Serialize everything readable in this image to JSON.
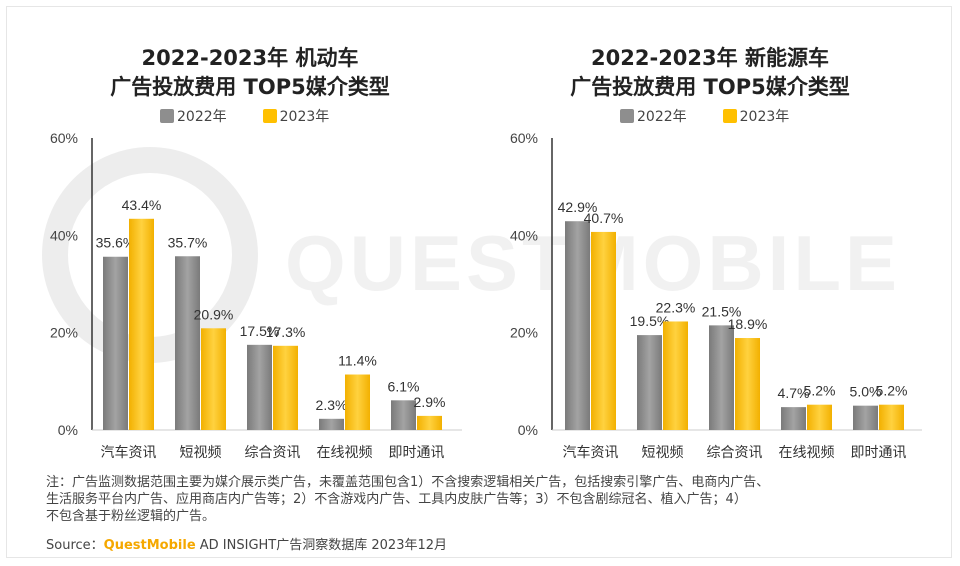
{
  "colors": {
    "gray_series": "#8e8e8e",
    "yellow_series": "#ffc000",
    "axis": "#333333",
    "label": "#333333",
    "brand": "#f5a800"
  },
  "watermark_text": "QUESTMOBILE",
  "chart_data": [
    {
      "type": "bar",
      "title": [
        "2022-2023年 机动车",
        "广告投放费用 TOP5媒介类型"
      ],
      "categories": [
        "汽车资讯",
        "短视频",
        "综合资讯",
        "在线视频",
        "即时通讯"
      ],
      "series": [
        {
          "name": "2022年",
          "values": [
            35.6,
            35.7,
            17.5,
            2.3,
            6.1
          ],
          "labels": [
            "35.6%",
            "35.7%",
            "17.5%",
            "2.3%",
            "6.1%"
          ]
        },
        {
          "name": "2023年",
          "values": [
            43.4,
            20.9,
            17.3,
            11.4,
            2.9
          ],
          "labels": [
            "43.4%",
            "20.9%",
            "17.3%",
            "11.4%",
            "2.9%"
          ]
        }
      ],
      "yticks": [
        "0%",
        "20%",
        "40%",
        "60%"
      ],
      "ylim": [
        0,
        60
      ]
    },
    {
      "type": "bar",
      "title": [
        "2022-2023年 新能源车",
        "广告投放费用 TOP5媒介类型"
      ],
      "categories": [
        "汽车资讯",
        "短视频",
        "综合资讯",
        "在线视频",
        "即时通讯"
      ],
      "series": [
        {
          "name": "2022年",
          "values": [
            42.9,
            19.5,
            21.5,
            4.7,
            5.0
          ],
          "labels": [
            "42.9%",
            "19.5%",
            "21.5%",
            "4.7%",
            "5.0%"
          ]
        },
        {
          "name": "2023年",
          "values": [
            40.7,
            22.3,
            18.9,
            5.2,
            5.2
          ],
          "labels": [
            "40.7%",
            "22.3%",
            "18.9%",
            "5.2%",
            "5.2%"
          ]
        }
      ],
      "yticks": [
        "0%",
        "20%",
        "40%",
        "60%"
      ],
      "ylim": [
        0,
        60
      ]
    }
  ],
  "notes": [
    "注：广告监测数据范围主要为媒介展示类广告，未覆盖范围包含1）不含搜索逻辑相关广告，包括搜索引擎广告、电商内广告、",
    "生活服务平台内广告、应用商店内广告等；2）不含游戏内广告、工具内皮肤广告等；3）不包含剧综冠名、植入广告；4）",
    "不包含基于粉丝逻辑的广告。"
  ],
  "source": {
    "prefix": "Source：",
    "brand": "QuestMobile",
    "suffix": " AD INSIGHT广告洞察数据库 2023年12月"
  }
}
